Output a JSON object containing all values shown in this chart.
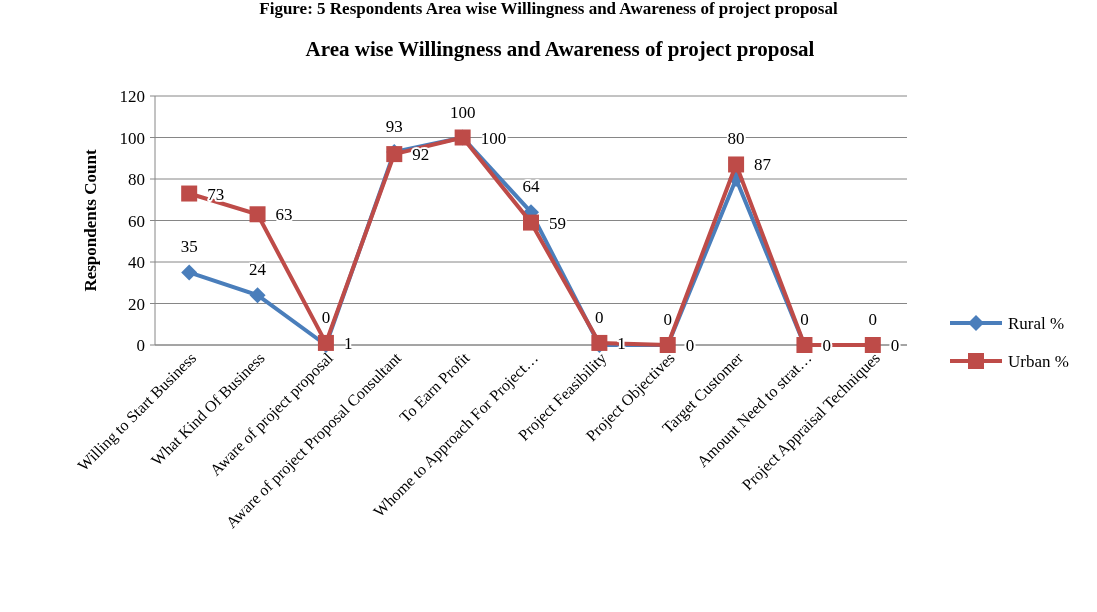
{
  "chart_data": {
    "type": "line",
    "title": "Area  wise  Willingness and Awareness of project proposal",
    "ylabel": "Respondents Count",
    "annotations": [
      "Figure:  5  Respondents Area  wise  Willingness and Awareness of project proposal"
    ],
    "categories": [
      "Willing to Start Business",
      "What Kind Of Business",
      "Aware of project proposal",
      "Aware of project Proposal Consultant",
      "To Earn Profit",
      "Whome to Approach For Project…",
      "Project Feasibility",
      "Project Objectives",
      "Target Customer",
      "Amount Need to strat…",
      "Project Appraisal Techniques"
    ],
    "series": [
      {
        "name": "Rural %",
        "color": "#4a7ebb",
        "marker": "diamond",
        "values": [
          35,
          24,
          0,
          93,
          100,
          64,
          0,
          0,
          80,
          0,
          0
        ]
      },
      {
        "name": "Urban %",
        "color": "#be4b48",
        "marker": "square",
        "values": [
          73,
          63,
          1,
          92,
          100,
          59,
          1,
          0,
          87,
          0,
          0
        ]
      }
    ],
    "ylim": [
      0,
      120
    ],
    "yticks": [
      0,
      20,
      40,
      60,
      80,
      100,
      120
    ],
    "grid": "y",
    "legend": "right",
    "data_labels": true,
    "line_style": "solid"
  }
}
